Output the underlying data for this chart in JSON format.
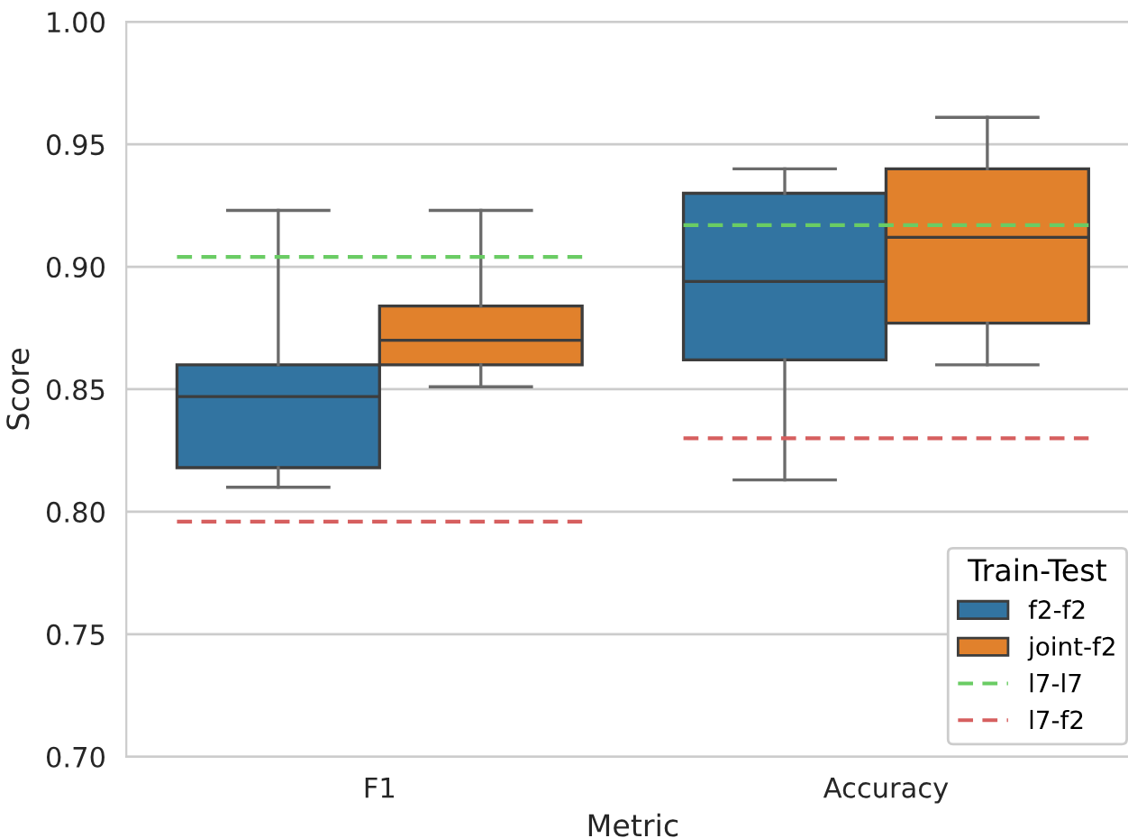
{
  "chart_data": {
    "type": "box",
    "xlabel": "Metric",
    "ylabel": "Score",
    "legend_title": "Train-Test",
    "legend": "bottom right",
    "grid": "y",
    "categories": [
      "F1",
      "Accuracy"
    ],
    "ylim": [
      0.7,
      1.0
    ],
    "yticks": [
      {
        "value": 0.7,
        "label": "0.70"
      },
      {
        "value": 0.75,
        "label": "0.75"
      },
      {
        "value": 0.8,
        "label": "0.80"
      },
      {
        "value": 0.85,
        "label": "0.85"
      },
      {
        "value": 0.9,
        "label": "0.90"
      },
      {
        "value": 0.95,
        "label": "0.95"
      },
      {
        "value": 1.0,
        "label": "1.00"
      }
    ],
    "series": [
      {
        "name": "f2-f2",
        "color": "#3274a1",
        "boxes": [
          {
            "low": 0.81,
            "q1": 0.818,
            "median": 0.847,
            "q3": 0.86,
            "high": 0.923
          },
          {
            "low": 0.813,
            "q1": 0.862,
            "median": 0.894,
            "q3": 0.93,
            "high": 0.94
          }
        ]
      },
      {
        "name": "joint-f2",
        "color": "#e1812c",
        "boxes": [
          {
            "low": 0.851,
            "q1": 0.86,
            "median": 0.87,
            "q3": 0.884,
            "high": 0.923
          },
          {
            "low": 0.86,
            "q1": 0.877,
            "median": 0.912,
            "q3": 0.94,
            "high": 0.961
          }
        ]
      }
    ],
    "ref_lines": [
      {
        "axis": "y",
        "value": 0.904,
        "label": "l7-l7",
        "color": "#6acc64",
        "line_style": "dashed"
      },
      {
        "axis": "y",
        "value": 0.917,
        "color": "#6acc64",
        "line_style": "dashed"
      },
      {
        "axis": "y",
        "value": 0.796,
        "label": "l7-f2",
        "color": "#d65f5f",
        "line_style": "dashed"
      },
      {
        "axis": "y",
        "value": 0.83,
        "color": "#d65f5f",
        "line_style": "dashed"
      }
    ]
  }
}
